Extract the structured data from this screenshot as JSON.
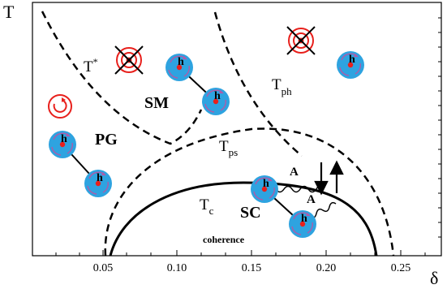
{
  "axes": {
    "y_label": "T",
    "x_label": "δ",
    "x_ticks": [
      "0.05",
      "0.10",
      "0.15",
      "0.20",
      "0.25"
    ]
  },
  "regions": {
    "t_star": {
      "main": "T",
      "sup": "*"
    },
    "sm": "SM",
    "pg": "PG",
    "t_ph": {
      "main": "T",
      "sub": "ph"
    },
    "t_ps": {
      "main": "T",
      "sub": "ps"
    },
    "t_c": {
      "main": "T",
      "sub": "c"
    },
    "sc": "SC",
    "coherence": "coherence"
  },
  "particle_label": "h",
  "gauge_label": "A",
  "colors": {
    "particle_fill": "#2ea3e0",
    "particle_swirl": "#b05aa8",
    "particle_core": "#e8201c",
    "vortex": "#e8201c",
    "line": "#000000"
  }
}
